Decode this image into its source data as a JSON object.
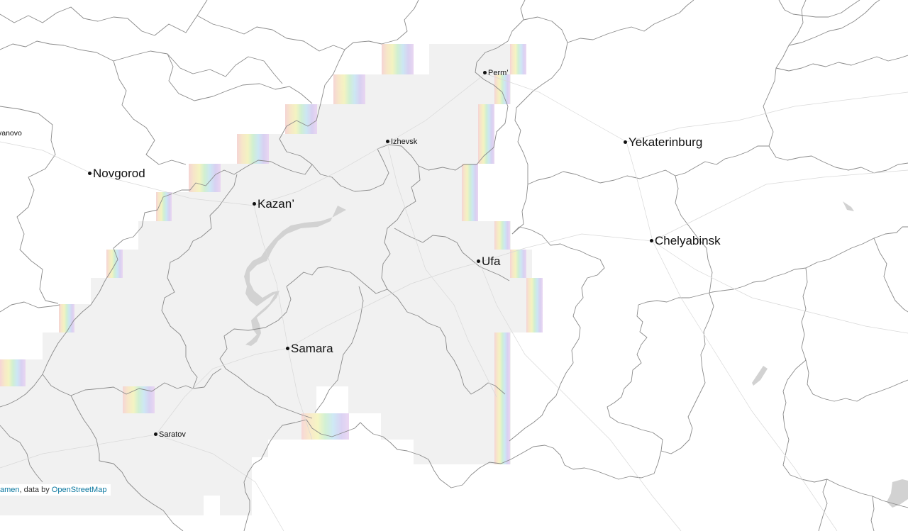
{
  "map": {
    "cities": [
      {
        "id": "ivanovo",
        "label": "vanovo",
        "size": "tiny"
      },
      {
        "id": "novgorod",
        "label": "Novgorod",
        "size": "big"
      },
      {
        "id": "kazan",
        "label": "Kazan’",
        "size": "big"
      },
      {
        "id": "izhevsk",
        "label": "Izhevsk",
        "size": "small"
      },
      {
        "id": "perm",
        "label": "Perm’",
        "size": "small"
      },
      {
        "id": "yekaterinburg",
        "label": "Yekaterinburg",
        "size": "big"
      },
      {
        "id": "chelyabinsk",
        "label": "Chelyabinsk",
        "size": "big"
      },
      {
        "id": "ufa",
        "label": "Ufa",
        "size": "big"
      },
      {
        "id": "samara",
        "label": "Samara",
        "size": "big"
      },
      {
        "id": "saratov",
        "label": "Saratov",
        "size": "small"
      }
    ],
    "colors": {
      "coverage": "#f1f1f1",
      "borders": "#8a8a8a",
      "water": "#d2d2d2",
      "background": "#ffffff"
    }
  },
  "attribution": {
    "prefix": "amen",
    "middle": ", data by ",
    "link": "OpenStreetMap"
  }
}
